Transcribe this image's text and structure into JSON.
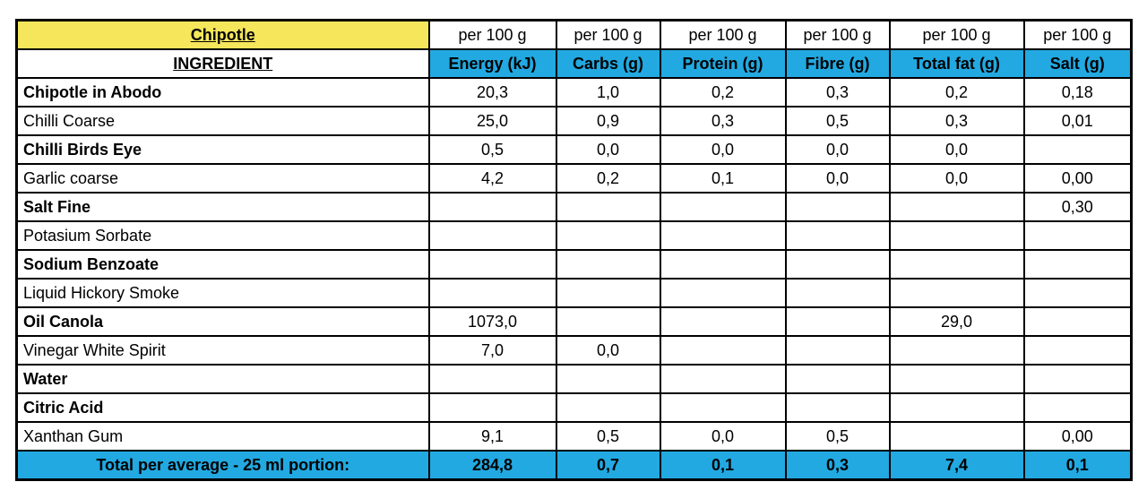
{
  "table": {
    "title": "Chipotle",
    "per_unit_label": "per 100 g",
    "ingredient_header": "INGREDIENT",
    "columns": [
      "Energy (kJ)",
      "Carbs (g)",
      "Protein (g)",
      "Fibre (g)",
      "Total fat (g)",
      "Salt (g)"
    ],
    "rows": [
      {
        "name": "Chipotle in Abodo",
        "bold": true,
        "values": [
          "20,3",
          "1,0",
          "0,2",
          "0,3",
          "0,2",
          "0,18"
        ]
      },
      {
        "name": "Chilli Coarse",
        "bold": false,
        "values": [
          "25,0",
          "0,9",
          "0,3",
          "0,5",
          "0,3",
          "0,01"
        ]
      },
      {
        "name": "Chilli Birds Eye",
        "bold": true,
        "values": [
          "0,5",
          "0,0",
          "0,0",
          "0,0",
          "0,0",
          ""
        ]
      },
      {
        "name": "Garlic coarse",
        "bold": false,
        "values": [
          "4,2",
          "0,2",
          "0,1",
          "0,0",
          "0,0",
          "0,00"
        ]
      },
      {
        "name": "Salt Fine",
        "bold": true,
        "values": [
          "",
          "",
          "",
          "",
          "",
          "0,30"
        ]
      },
      {
        "name": "Potasium Sorbate",
        "bold": false,
        "values": [
          "",
          "",
          "",
          "",
          "",
          ""
        ]
      },
      {
        "name": "Sodium Benzoate",
        "bold": true,
        "values": [
          "",
          "",
          "",
          "",
          "",
          ""
        ]
      },
      {
        "name": "Liquid Hickory Smoke",
        "bold": false,
        "values": [
          "",
          "",
          "",
          "",
          "",
          ""
        ]
      },
      {
        "name": "Oil Canola",
        "bold": true,
        "values": [
          "1073,0",
          "",
          "",
          "",
          "29,0",
          ""
        ]
      },
      {
        "name": "Vinegar White Spirit",
        "bold": false,
        "values": [
          "7,0",
          "0,0",
          "",
          "",
          "",
          ""
        ]
      },
      {
        "name": "Water",
        "bold": true,
        "values": [
          "",
          "",
          "",
          "",
          "",
          ""
        ]
      },
      {
        "name": "Citric Acid",
        "bold": true,
        "values": [
          "",
          "",
          "",
          "",
          "",
          ""
        ]
      },
      {
        "name": "Xanthan Gum",
        "bold": false,
        "values": [
          "9,1",
          "0,5",
          "0,0",
          "0,5",
          "",
          "0,00"
        ]
      }
    ],
    "total_row": {
      "label": "Total per average - 25 ml portion:",
      "values": [
        "284,8",
        "0,7",
        "0,1",
        "0,3",
        "7,4",
        "0,1"
      ]
    },
    "colors": {
      "title_bg": "#F5E65C",
      "header_bg": "#22A9E1",
      "border": "#000000"
    }
  }
}
